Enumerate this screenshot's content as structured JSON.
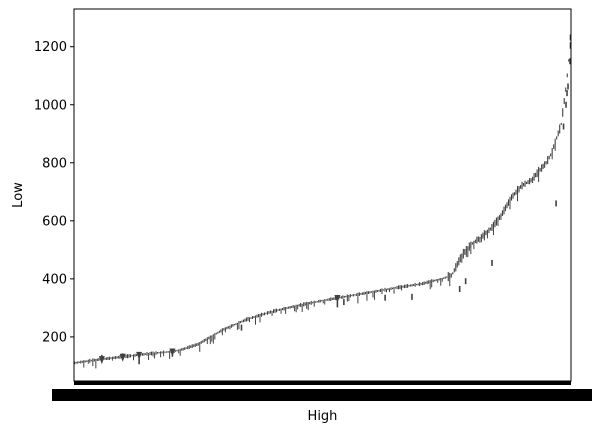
{
  "chart_data": {
    "type": "box",
    "title": "",
    "xlabel": "High",
    "ylabel": "Low",
    "ylim": [
      48,
      1330
    ],
    "yticks": [
      200,
      400,
      600,
      800,
      1000,
      1200
    ],
    "ytick_labels": [
      "200",
      "400",
      "600",
      "800",
      "1000",
      "1200"
    ],
    "x_tick_labels_note": "hundreds of overlapping category labels (unreadable)",
    "grid": false,
    "box_color": "#404040",
    "trend": {
      "x_fraction": [
        0.0,
        0.05,
        0.1,
        0.15,
        0.2,
        0.22,
        0.25,
        0.3,
        0.35,
        0.4,
        0.45,
        0.5,
        0.55,
        0.6,
        0.65,
        0.7,
        0.72,
        0.74,
        0.76,
        0.78,
        0.8,
        0.82,
        0.84,
        0.86,
        0.88,
        0.9,
        0.92,
        0.94,
        0.95,
        0.96,
        0.97,
        0.98,
        0.99,
        1.0
      ],
      "low": [
        110,
        122,
        132,
        142,
        150,
        158,
        175,
        225,
        262,
        288,
        308,
        325,
        340,
        355,
        370,
        383,
        392,
        400,
        412,
        480,
        520,
        545,
        575,
        620,
        680,
        720,
        740,
        780,
        800,
        830,
        880,
        930,
        1060,
        1230
      ]
    },
    "outliers": [
      {
        "x_fraction": 0.056,
        "low": 128
      },
      {
        "x_fraction": 0.098,
        "low": 133
      },
      {
        "x_fraction": 0.131,
        "low": 116
      },
      {
        "x_fraction": 0.198,
        "low": 142
      },
      {
        "x_fraction": 0.337,
        "low": 232
      },
      {
        "x_fraction": 0.53,
        "low": 312
      },
      {
        "x_fraction": 0.543,
        "low": 320
      },
      {
        "x_fraction": 0.626,
        "low": 335
      },
      {
        "x_fraction": 0.68,
        "low": 338
      },
      {
        "x_fraction": 0.776,
        "low": 365
      },
      {
        "x_fraction": 0.788,
        "low": 392
      },
      {
        "x_fraction": 0.841,
        "low": 455
      },
      {
        "x_fraction": 0.97,
        "low": 660
      },
      {
        "x_fraction": 0.985,
        "low": 925
      },
      {
        "x_fraction": 0.99,
        "low": 1000
      },
      {
        "x_fraction": 0.992,
        "low": 1040
      },
      {
        "x_fraction": 0.994,
        "low": 1063
      },
      {
        "x_fraction": 0.998,
        "low": 1150
      },
      {
        "x_fraction": 0.999,
        "low": 1232
      }
    ]
  }
}
